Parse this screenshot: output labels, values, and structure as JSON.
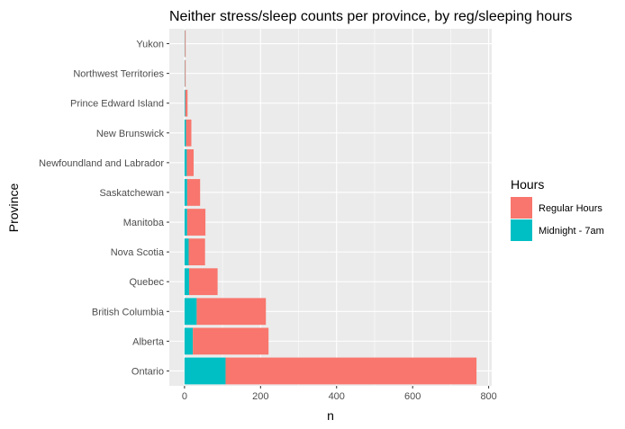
{
  "chart_data": {
    "type": "bar",
    "orientation": "horizontal",
    "stacked": true,
    "title": "Neither stress/sleep counts per province, by reg/sleeping hours",
    "xlabel": "n",
    "ylabel": "Province",
    "categories": [
      "Ontario",
      "Alberta",
      "British Columbia",
      "Quebec",
      "Nova Scotia",
      "Manitoba",
      "Saskatchewan",
      "Newfoundland and Labrador",
      "New Brunswick",
      "Prince Edward Island",
      "Northwest Territories",
      "Yukon"
    ],
    "series": [
      {
        "name": "Midnight - 7am",
        "color": "#00BFC4",
        "values": [
          108,
          22,
          32,
          12,
          11,
          7,
          7,
          6,
          4,
          2,
          1,
          1
        ]
      },
      {
        "name": "Regular Hours",
        "color": "#F8766D",
        "values": [
          660,
          199,
          182,
          75,
          43,
          48,
          34,
          18,
          14,
          6,
          2,
          2
        ]
      }
    ],
    "xlim": [
      -40,
      808
    ],
    "xticks": [
      0,
      200,
      400,
      600,
      800
    ],
    "grid": true,
    "legend": {
      "title": "Hours",
      "position": "right",
      "entries": [
        "Regular Hours",
        "Midnight - 7am"
      ]
    },
    "panel_background": "#EBEBEB"
  }
}
